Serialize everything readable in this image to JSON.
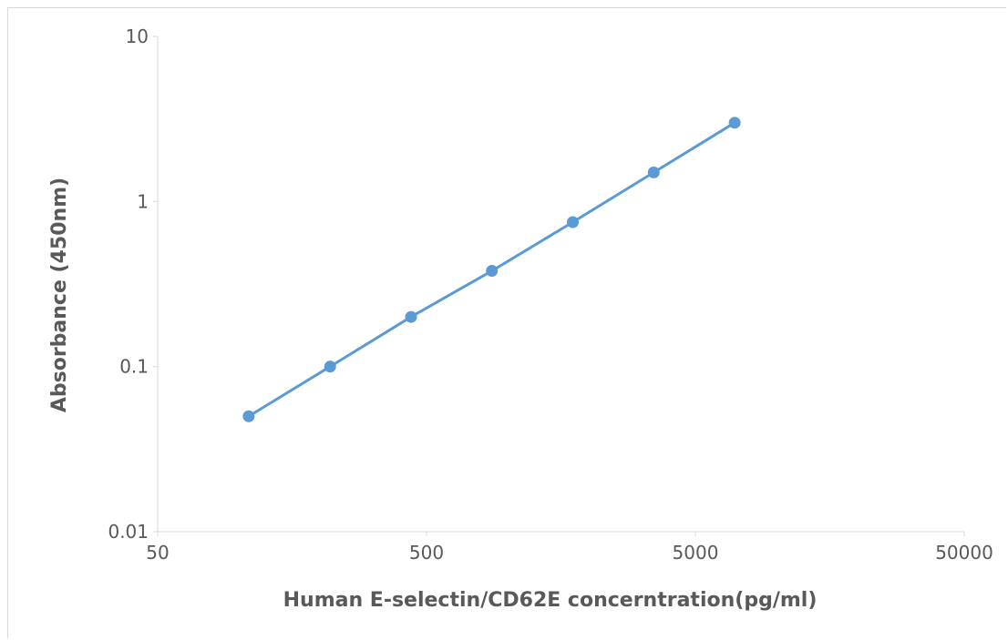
{
  "chart_data": {
    "type": "line",
    "title": "",
    "xlabel": "Human E-selectin/CD62E concerntration(pg/ml)",
    "ylabel": "Absorbance (450nm)",
    "x_scale": "log",
    "y_scale": "log",
    "xlim": [
      50,
      50000
    ],
    "ylim": [
      0.01,
      10
    ],
    "x_ticks": [
      "50",
      "500",
      "5000",
      "50000"
    ],
    "y_ticks": [
      "0.01",
      "0.1",
      "1",
      "10"
    ],
    "grid": false,
    "legend": "none",
    "series": [
      {
        "color": "#5b9bd5",
        "x": [
          109,
          219,
          438,
          875,
          1750,
          3500,
          7000
        ],
        "y": [
          0.05,
          0.1,
          0.2,
          0.38,
          0.75,
          1.5,
          3.0
        ]
      }
    ]
  }
}
